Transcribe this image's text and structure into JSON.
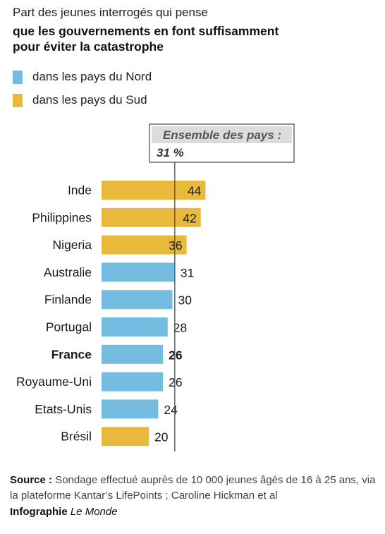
{
  "title_line1": "Part des jeunes interrogés qui pense",
  "title_line2": "que les gouvernements en font suffisamment",
  "title_line3": "pour éviter la catastrophe",
  "legend": [
    {
      "label": "dans les pays du Nord",
      "color": "#75bde0"
    },
    {
      "label": "dans les pays du Sud",
      "color": "#e8b93a"
    }
  ],
  "chart_data": {
    "type": "bar",
    "orientation": "horizontal",
    "categories": [
      "Inde",
      "Philippines",
      "Nigeria",
      "Australie",
      "Finlande",
      "Portugal",
      "France",
      "Royaume-Uni",
      "Etats-Unis",
      "Brésil"
    ],
    "values": [
      44,
      42,
      36,
      31,
      30,
      28,
      26,
      26,
      24,
      20
    ],
    "groups": [
      "Sud",
      "Sud",
      "Sud",
      "Nord",
      "Nord",
      "Nord",
      "Nord",
      "Nord",
      "Nord",
      "Sud"
    ],
    "highlight": "France",
    "reference_line": {
      "label": "Ensemble des pays :",
      "value_label": "31 %",
      "value": 31
    },
    "colors": {
      "Nord": "#75bde0",
      "Sud": "#e8b93a"
    }
  },
  "source_label": "Source :",
  "source_text": "Sondage effectué auprès de 10 000 jeunes âgés de 16 à 25 ans, via la plateforme Kantar’s LifePoints ; Caroline Hickman et al",
  "credit_prefix": "Infographie",
  "credit_name": "Le Monde"
}
